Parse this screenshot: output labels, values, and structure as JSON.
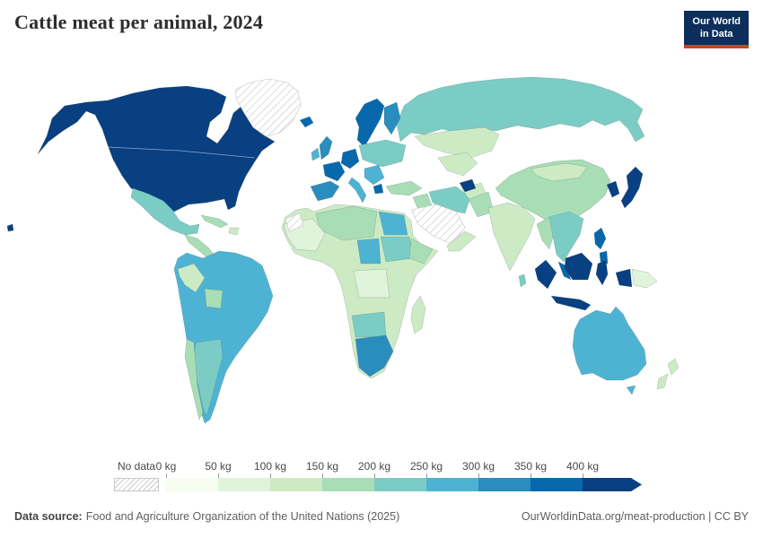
{
  "header": {
    "title": "Cattle meat per animal, 2024",
    "logo": {
      "line1": "Our World",
      "line2": "in Data",
      "bg_color": "#0d2e5a",
      "accent_color": "#d43a31"
    }
  },
  "legend": {
    "no_data_label": "No data",
    "tick_labels": [
      "0 kg",
      "50 kg",
      "100 kg",
      "150 kg",
      "200 kg",
      "250 kg",
      "300 kg",
      "350 kg",
      "400 kg"
    ],
    "colors": [
      "#f7fcf0",
      "#e0f3db",
      "#ccebc5",
      "#a8ddb5",
      "#7bccc4",
      "#4eb3d3",
      "#2b8cbe",
      "#0868ac",
      "#084081"
    ],
    "category_ranges": [
      "0-50 kg",
      "50-100 kg",
      "100-150 kg",
      "150-200 kg",
      "200-250 kg",
      "250-300 kg",
      "300-350 kg",
      "350-400 kg",
      "400+ kg"
    ]
  },
  "map": {
    "no_data_pattern": "diagonal-hatch",
    "region_categories": {
      "north-america": 8,
      "hawaii": 8,
      "greenland": -1,
      "mexico": 4,
      "central-america": 3,
      "cuba": 3,
      "hispaniola": 2,
      "south-america": 5,
      "peru": 2,
      "bolivia": 3,
      "argentina": 4,
      "chile": 3,
      "iceland": 7,
      "uk": 6,
      "ireland": 5,
      "scandinavia": 7,
      "finland": 6,
      "france": 7,
      "iberia": 6,
      "central-europe": 7,
      "italy": 5,
      "eastern-europe": 4,
      "balkans": 5,
      "greece": 7,
      "russia": 4,
      "central-asia": 2,
      "afghanistan": 2,
      "tajikistan": 8,
      "turkey": 3,
      "iraq": 3,
      "iran": 4,
      "saudi-arabia": -1,
      "yemen-oman": 2,
      "africa": 2,
      "algeria-libya": 3,
      "egypt": 5,
      "sudan": 4,
      "chad": 5,
      "west-africa": 1,
      "ethiopia": 3,
      "drc": 1,
      "namibia-botswana": 4,
      "south-africa": 6,
      "madagascar": 2,
      "western-sahara": -1,
      "india": 2,
      "pakistan": 3,
      "sri-lanka": 4,
      "myanmar": 3,
      "indochina": 4,
      "malaysia": 7,
      "china": 3,
      "mongolia": 2,
      "korea": 8,
      "japan": 8,
      "philippines": 7,
      "indonesia": 8,
      "papua-new-guinea": 1,
      "australia": 5,
      "new-zealand": 2
    }
  },
  "footer": {
    "source_label": "Data source:",
    "source_text": "Food and Agriculture Organization of the United Nations (2025)",
    "attribution": "OurWorldinData.org/meat-production | CC BY"
  }
}
